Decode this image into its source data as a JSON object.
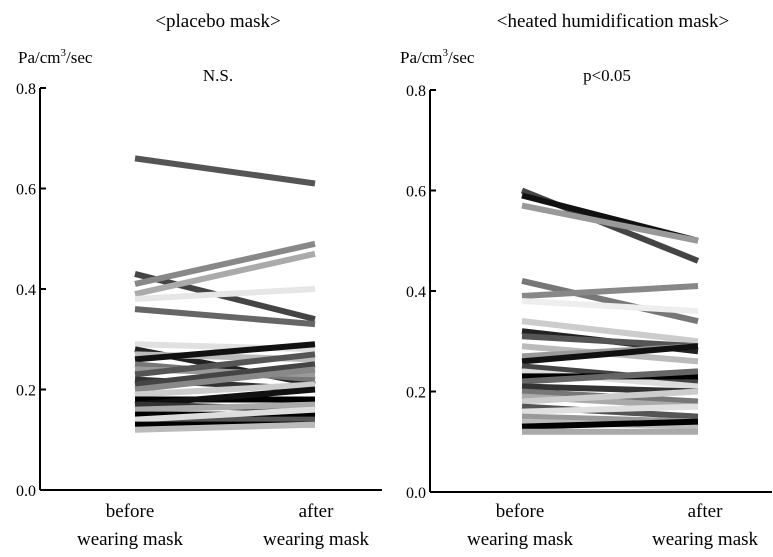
{
  "chart_data": [
    {
      "type": "line",
      "title": "<placebo mask>",
      "annotation": "N.S.",
      "ylabel": "Pa/cm",
      "ylabel_sup": "3",
      "ylabel_suffix": "/sec",
      "categories": [
        "before wearing mask",
        "after wearing mask"
      ],
      "category_lines": [
        [
          "before",
          "wearing mask"
        ],
        [
          "after",
          "wearing mask"
        ]
      ],
      "ylim": [
        0.0,
        0.8
      ],
      "yticks": [
        "0.0",
        "0.2",
        "0.4",
        "0.6",
        "0.8"
      ],
      "series": [
        {
          "values": [
            0.66,
            0.61
          ],
          "color": "#555555"
        },
        {
          "values": [
            0.43,
            0.34
          ],
          "color": "#444444"
        },
        {
          "values": [
            0.41,
            0.49
          ],
          "color": "#888888"
        },
        {
          "values": [
            0.39,
            0.47
          ],
          "color": "#aaaaaa"
        },
        {
          "values": [
            0.38,
            0.4
          ],
          "color": "#e6e6e6"
        },
        {
          "values": [
            0.36,
            0.33
          ],
          "color": "#666666"
        },
        {
          "values": [
            0.29,
            0.28
          ],
          "color": "#e0e0e0"
        },
        {
          "values": [
            0.28,
            0.21
          ],
          "color": "#222222"
        },
        {
          "values": [
            0.27,
            0.26
          ],
          "color": "#bbbbbb"
        },
        {
          "values": [
            0.26,
            0.29
          ],
          "color": "#111111"
        },
        {
          "values": [
            0.25,
            0.22
          ],
          "color": "#777777"
        },
        {
          "values": [
            0.24,
            0.23
          ],
          "color": "#999999"
        },
        {
          "values": [
            0.23,
            0.27
          ],
          "color": "#555555"
        },
        {
          "values": [
            0.22,
            0.2
          ],
          "color": "#333333"
        },
        {
          "values": [
            0.21,
            0.25
          ],
          "color": "#444444"
        },
        {
          "values": [
            0.2,
            0.24
          ],
          "color": "#888888"
        },
        {
          "values": [
            0.19,
            0.21
          ],
          "color": "#cccccc"
        },
        {
          "values": [
            0.18,
            0.18
          ],
          "color": "#000000"
        },
        {
          "values": [
            0.17,
            0.2
          ],
          "color": "#111111"
        },
        {
          "values": [
            0.17,
            0.16
          ],
          "color": "#333333"
        },
        {
          "values": [
            0.16,
            0.17
          ],
          "color": "#aaaaaa"
        },
        {
          "values": [
            0.15,
            0.15
          ],
          "color": "#000000"
        },
        {
          "values": [
            0.14,
            0.14
          ],
          "color": "#555555"
        },
        {
          "values": [
            0.14,
            0.16
          ],
          "color": "#dddddd"
        },
        {
          "values": [
            0.13,
            0.13
          ],
          "color": "#000000"
        },
        {
          "values": [
            0.12,
            0.13
          ],
          "color": "#bbbbbb"
        }
      ]
    },
    {
      "type": "line",
      "title": "<heated humidification mask>",
      "annotation": "p<0.05",
      "ylabel": "Pa/cm",
      "ylabel_sup": "3",
      "ylabel_suffix": "/sec",
      "categories": [
        "before wearing mask",
        "after wearing mask"
      ],
      "category_lines": [
        [
          "before",
          "wearing mask"
        ],
        [
          "after",
          "wearing mask"
        ]
      ],
      "ylim": [
        0.0,
        0.8
      ],
      "yticks": [
        "0.0",
        "0.2",
        "0.4",
        "0.6",
        "0.8"
      ],
      "series": [
        {
          "values": [
            0.6,
            0.46
          ],
          "color": "#444444"
        },
        {
          "values": [
            0.59,
            0.5
          ],
          "color": "#111111"
        },
        {
          "values": [
            0.57,
            0.5
          ],
          "color": "#999999"
        },
        {
          "values": [
            0.42,
            0.34
          ],
          "color": "#777777"
        },
        {
          "values": [
            0.39,
            0.41
          ],
          "color": "#888888"
        },
        {
          "values": [
            0.38,
            0.36
          ],
          "color": "#eeeeee"
        },
        {
          "values": [
            0.34,
            0.3
          ],
          "color": "#cccccc"
        },
        {
          "values": [
            0.32,
            0.28
          ],
          "color": "#222222"
        },
        {
          "values": [
            0.31,
            0.29
          ],
          "color": "#555555"
        },
        {
          "values": [
            0.29,
            0.26
          ],
          "color": "#bbbbbb"
        },
        {
          "values": [
            0.27,
            0.29
          ],
          "color": "#999999"
        },
        {
          "values": [
            0.26,
            0.29
          ],
          "color": "#111111"
        },
        {
          "values": [
            0.25,
            0.22
          ],
          "color": "#444444"
        },
        {
          "values": [
            0.24,
            0.21
          ],
          "color": "#dddddd"
        },
        {
          "values": [
            0.23,
            0.23
          ],
          "color": "#000000"
        },
        {
          "values": [
            0.22,
            0.24
          ],
          "color": "#666666"
        },
        {
          "values": [
            0.21,
            0.2
          ],
          "color": "#333333"
        },
        {
          "values": [
            0.2,
            0.18
          ],
          "color": "#777777"
        },
        {
          "values": [
            0.19,
            0.17
          ],
          "color": "#aaaaaa"
        },
        {
          "values": [
            0.18,
            0.2
          ],
          "color": "#cccccc"
        },
        {
          "values": [
            0.17,
            0.15
          ],
          "color": "#555555"
        },
        {
          "values": [
            0.16,
            0.17
          ],
          "color": "#e0e0e0"
        },
        {
          "values": [
            0.15,
            0.14
          ],
          "color": "#999999"
        },
        {
          "values": [
            0.14,
            0.13
          ],
          "color": "#bbbbbb"
        },
        {
          "values": [
            0.13,
            0.14
          ],
          "color": "#000000"
        },
        {
          "values": [
            0.12,
            0.12
          ],
          "color": "#aaaaaa"
        }
      ]
    }
  ]
}
